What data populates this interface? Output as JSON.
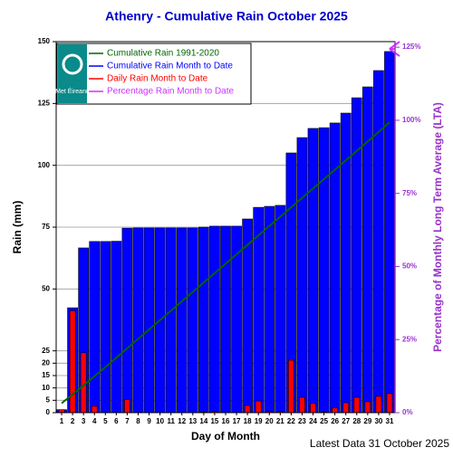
{
  "chart_data": {
    "type": "bar",
    "title": "Athenry - Cumulative Rain October   2025",
    "xlabel": "Day of Month",
    "ylabel": "Rain (mm)",
    "y2label": "Percentage  of Monthly Long Term Average (LTA)",
    "footer": "Latest Data 31 October 2025",
    "logo": "Met Éireann",
    "categories": [
      "1",
      "2",
      "3",
      "4",
      "5",
      "6",
      "7",
      "8",
      "9",
      "10",
      "11",
      "12",
      "13",
      "14",
      "15",
      "16",
      "17",
      "18",
      "19",
      "20",
      "21",
      "22",
      "23",
      "24",
      "25",
      "26",
      "27",
      "28",
      "29",
      "30",
      "31"
    ],
    "series": [
      {
        "name": "Cumulative Rain 1991-2020",
        "color": "#006400",
        "type": "line",
        "values": [
          3.8,
          7.4,
          11.0,
          14.7,
          18.4,
          22.2,
          26.0,
          29.8,
          33.6,
          37.4,
          41.2,
          45.0,
          48.8,
          52.6,
          56.4,
          60.2,
          64.0,
          67.8,
          71.6,
          75.4,
          79.2,
          83.0,
          86.8,
          90.6,
          94.4,
          98.2,
          102.0,
          105.8,
          109.6,
          113.5,
          117.4
        ]
      },
      {
        "name": "Cumulative Rain Month to Date",
        "color": "#0000ff",
        "type": "bar",
        "values": [
          1.2,
          42.4,
          66.6,
          69.2,
          69.2,
          69.3,
          74.6,
          74.7,
          74.7,
          74.7,
          74.7,
          74.7,
          74.7,
          75.0,
          75.4,
          75.4,
          75.4,
          78.3,
          83.0,
          83.4,
          83.8,
          105.0,
          111.2,
          114.9,
          115.2,
          117.1,
          121.1,
          127.3,
          131.7,
          138.3,
          146.0
        ]
      },
      {
        "name": "Daily Rain Month to Date",
        "color": "#ff0000",
        "type": "bar",
        "values": [
          1.2,
          41.2,
          24.2,
          2.6,
          0,
          0.1,
          5.3,
          0.1,
          0,
          0,
          0,
          0,
          0,
          0.3,
          0.4,
          0,
          0,
          2.9,
          4.7,
          0.4,
          0.4,
          21.2,
          6.2,
          3.7,
          0.3,
          1.9,
          4.0,
          6.2,
          4.4,
          6.6,
          7.7
        ]
      },
      {
        "name": "Percentage Rain Month to Date",
        "color": "#cc33ff",
        "type": "marker",
        "axis": "y2",
        "values": [
          null,
          null,
          null,
          null,
          null,
          null,
          null,
          null,
          null,
          null,
          null,
          null,
          null,
          null,
          null,
          null,
          null,
          null,
          null,
          null,
          null,
          null,
          null,
          null,
          null,
          null,
          null,
          null,
          null,
          null,
          124.4
        ]
      }
    ],
    "ylim": [
      0,
      150
    ],
    "yticks": [
      0,
      5,
      10,
      15,
      20,
      25,
      50,
      75,
      100,
      125,
      150
    ],
    "y2lim": [
      0,
      126.9
    ],
    "y2ticks": [
      {
        "value": 0,
        "label": "0%"
      },
      {
        "value": 25,
        "label": "25%"
      },
      {
        "value": 50,
        "label": "50%"
      },
      {
        "value": 75,
        "label": "75%"
      },
      {
        "value": 100,
        "label": "100%"
      },
      {
        "value": 125,
        "label": "125%"
      }
    ],
    "grid": true,
    "legend": "upper left"
  }
}
